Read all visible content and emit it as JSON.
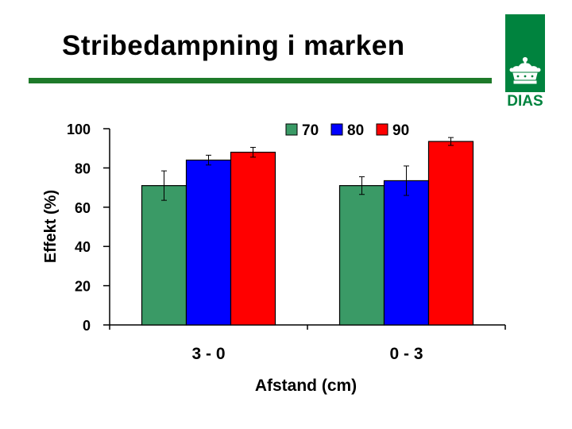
{
  "slide": {
    "title": "Stribedampning i marken",
    "logo_text": "DIAS",
    "accent_color": "#1e7a2a",
    "logo_color": "#00833e"
  },
  "chart_data": {
    "type": "bar",
    "title": "",
    "xlabel": "Afstand (cm)",
    "ylabel": "Effekt (%)",
    "ylim": [
      0,
      100
    ],
    "yticks": [
      0,
      20,
      40,
      60,
      80,
      100
    ],
    "categories": [
      "3 - 0",
      "0 - 3"
    ],
    "series": [
      {
        "name": "70",
        "color": "#3a9a66",
        "values": [
          71,
          71
        ],
        "errors": [
          7.5,
          4.5
        ]
      },
      {
        "name": "80",
        "color": "#0000ff",
        "values": [
          84,
          73.5
        ],
        "errors": [
          2.5,
          7.5
        ]
      },
      {
        "name": "90",
        "color": "#ff0000",
        "values": [
          88,
          93.5
        ],
        "errors": [
          2.5,
          2
        ]
      }
    ],
    "legend_position": "top-right",
    "grid": false,
    "error_bars": true
  }
}
